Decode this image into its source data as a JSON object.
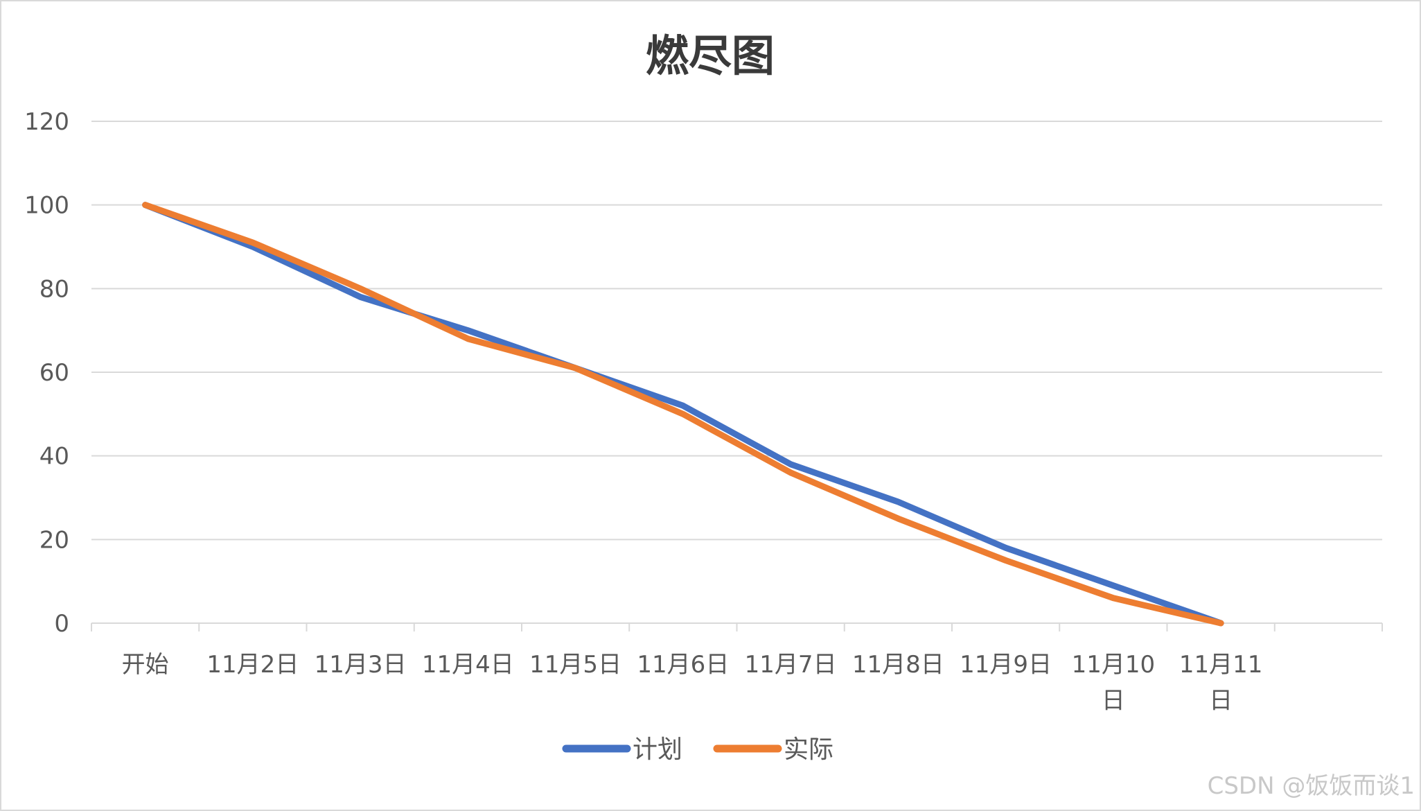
{
  "chart_data": {
    "type": "line",
    "title": "燃尽图",
    "categories": [
      "开始",
      "11月2日",
      "11月3日",
      "11月4日",
      "11月5日",
      "11月6日",
      "11月7日",
      "11月8日",
      "11月9日",
      "11月10日",
      "11月11日"
    ],
    "category_display": [
      [
        "开始"
      ],
      [
        "11月2日"
      ],
      [
        "11月3日"
      ],
      [
        "11月4日"
      ],
      [
        "11月5日"
      ],
      [
        "11月6日"
      ],
      [
        "11月7日"
      ],
      [
        "11月8日"
      ],
      [
        "11月9日"
      ],
      [
        "11月10",
        "日"
      ],
      [
        "11月11",
        "日"
      ]
    ],
    "series": [
      {
        "name": "计划",
        "color": "#4472c4",
        "values": [
          100,
          90,
          78,
          70,
          61,
          52,
          38,
          29,
          18,
          9,
          0
        ]
      },
      {
        "name": "实际",
        "color": "#ed7d31",
        "values": [
          100,
          91,
          80,
          68,
          61,
          50,
          36,
          25,
          15,
          6,
          0
        ]
      }
    ],
    "ylim": [
      0,
      120
    ],
    "yticks": [
      0,
      20,
      40,
      60,
      80,
      100,
      120
    ],
    "grid": true,
    "legend": "bottom",
    "xlabel": "",
    "ylabel": ""
  },
  "watermark": "CSDN @饭饭而谈1"
}
